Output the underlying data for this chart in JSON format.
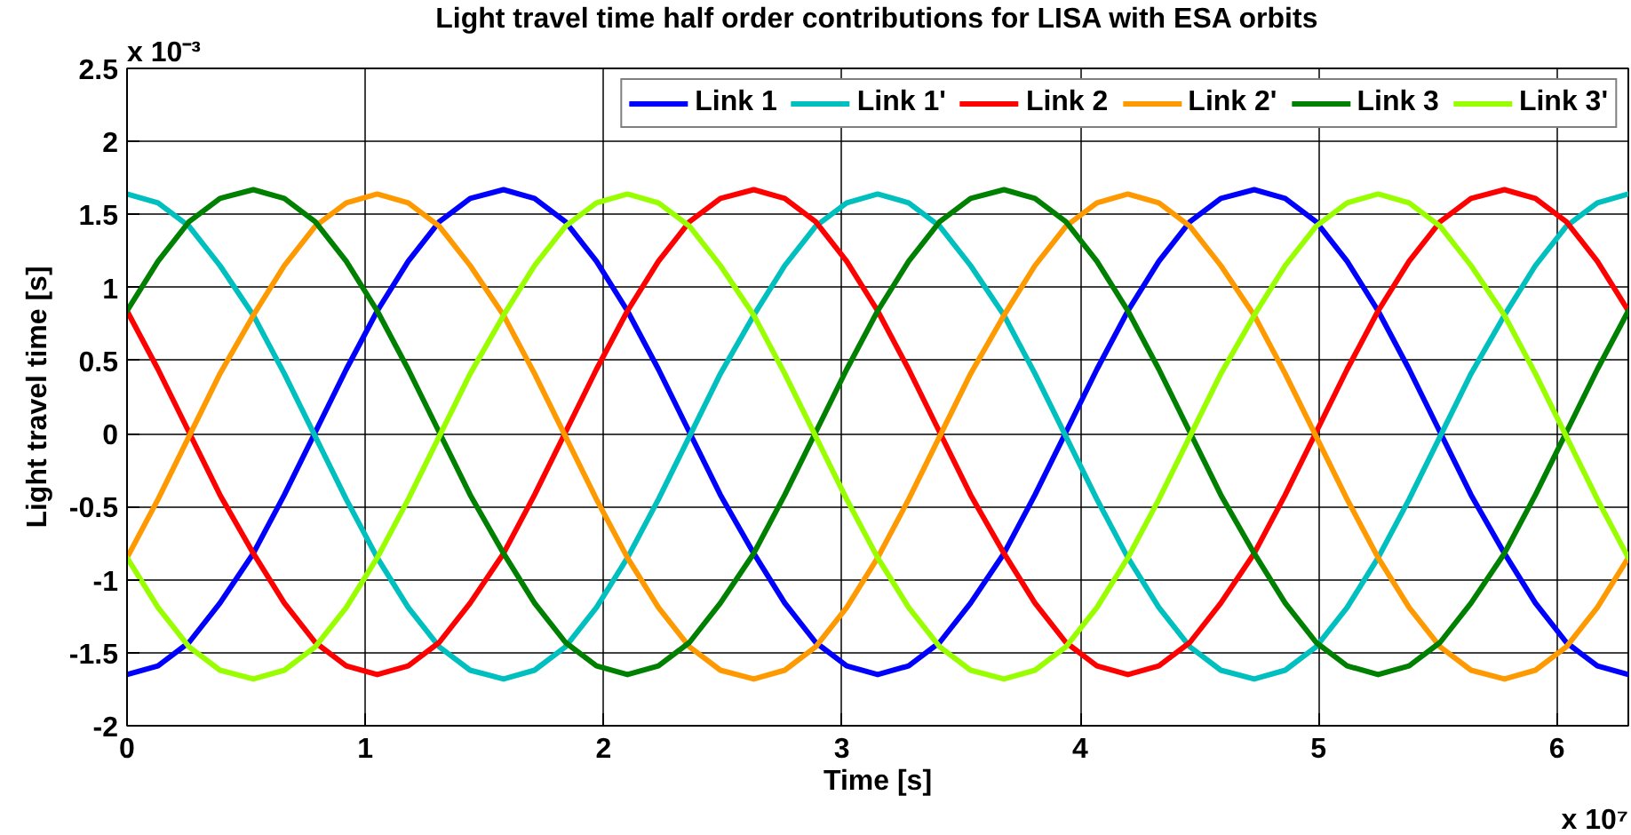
{
  "chart_data": {
    "type": "line",
    "title": "Light travel time half order contributions for LISA with ESA orbits",
    "xlabel": "Time [s]",
    "ylabel": "Light travel time [s]",
    "annotations": [
      "x 10⁻³",
      "x 10⁷"
    ],
    "xlim": [
      0,
      6.3
    ],
    "ylim": [
      -2,
      2.5
    ],
    "xticks": [
      0,
      1,
      2,
      3,
      4,
      5,
      6
    ],
    "yticks": [
      -2,
      -1.5,
      -1,
      -0.5,
      0,
      0.5,
      1,
      1.5,
      2,
      2.5
    ],
    "grid": true,
    "legend": "top right",
    "x": [
      0,
      0.13,
      0.26,
      0.39,
      0.53,
      0.66,
      0.79,
      0.92,
      1.05,
      1.18,
      1.31,
      1.44,
      1.58,
      1.71,
      1.84,
      1.97,
      2.1,
      2.23,
      2.36,
      2.49,
      2.63,
      2.76,
      2.89,
      3.02,
      3.15,
      3.28,
      3.41,
      3.54,
      3.68,
      3.81,
      3.94,
      4.07,
      4.2,
      4.33,
      4.46,
      4.59,
      4.73,
      4.86,
      4.99,
      5.12,
      5.25,
      5.38,
      5.51,
      5.64,
      5.78,
      5.91,
      6.04,
      6.17,
      6.3
    ],
    "series": [
      {
        "name": "Link 1",
        "color": "#0000ff",
        "values": [
          -1.65,
          -1.59,
          -1.43,
          -1.16,
          -0.82,
          -0.42,
          0.01,
          0.44,
          0.84,
          1.18,
          1.45,
          1.61,
          1.67,
          1.61,
          1.45,
          1.18,
          0.84,
          0.44,
          0.01,
          -0.42,
          -0.82,
          -1.16,
          -1.43,
          -1.59,
          -1.65,
          -1.59,
          -1.43,
          -1.16,
          -0.82,
          -0.42,
          0.01,
          0.44,
          0.84,
          1.18,
          1.45,
          1.61,
          1.67,
          1.61,
          1.45,
          1.18,
          0.84,
          0.44,
          0.01,
          -0.42,
          -0.82,
          -1.16,
          -1.43,
          -1.59,
          -1.65
        ]
      },
      {
        "name": "Link 1'",
        "color": "#00bfbf",
        "values": [
          1.64,
          1.58,
          1.42,
          1.15,
          0.81,
          0.41,
          -0.02,
          -0.45,
          -0.85,
          -1.19,
          -1.46,
          -1.62,
          -1.68,
          -1.62,
          -1.46,
          -1.19,
          -0.85,
          -0.45,
          -0.02,
          0.41,
          0.81,
          1.15,
          1.42,
          1.58,
          1.64,
          1.58,
          1.42,
          1.15,
          0.81,
          0.41,
          -0.02,
          -0.45,
          -0.85,
          -1.19,
          -1.46,
          -1.62,
          -1.68,
          -1.62,
          -1.46,
          -1.19,
          -0.85,
          -0.45,
          -0.02,
          0.41,
          0.81,
          1.15,
          1.42,
          1.58,
          1.64
        ]
      },
      {
        "name": "Link 2",
        "color": "#ff0000",
        "values": [
          0.84,
          0.44,
          0.01,
          -0.42,
          -0.82,
          -1.16,
          -1.43,
          -1.59,
          -1.65,
          -1.59,
          -1.43,
          -1.16,
          -0.82,
          -0.42,
          0.01,
          0.44,
          0.84,
          1.18,
          1.45,
          1.61,
          1.67,
          1.61,
          1.45,
          1.18,
          0.84,
          0.44,
          0.01,
          -0.42,
          -0.82,
          -1.16,
          -1.43,
          -1.59,
          -1.65,
          -1.59,
          -1.43,
          -1.16,
          -0.82,
          -0.42,
          0.01,
          0.44,
          0.84,
          1.18,
          1.45,
          1.61,
          1.67,
          1.61,
          1.45,
          1.18,
          0.84
        ]
      },
      {
        "name": "Link 2'",
        "color": "#ff9900",
        "values": [
          -0.85,
          -0.45,
          -0.02,
          0.41,
          0.81,
          1.15,
          1.42,
          1.58,
          1.64,
          1.58,
          1.42,
          1.15,
          0.81,
          0.41,
          -0.02,
          -0.45,
          -0.85,
          -1.19,
          -1.46,
          -1.62,
          -1.68,
          -1.62,
          -1.46,
          -1.19,
          -0.85,
          -0.45,
          -0.02,
          0.41,
          0.81,
          1.15,
          1.42,
          1.58,
          1.64,
          1.58,
          1.42,
          1.15,
          0.81,
          0.41,
          -0.02,
          -0.45,
          -0.85,
          -1.19,
          -1.46,
          -1.62,
          -1.68,
          -1.62,
          -1.46,
          -1.19,
          -0.85
        ]
      },
      {
        "name": "Link 3",
        "color": "#008000",
        "values": [
          0.84,
          1.18,
          1.45,
          1.61,
          1.67,
          1.61,
          1.45,
          1.18,
          0.84,
          0.44,
          0.01,
          -0.42,
          -0.82,
          -1.16,
          -1.43,
          -1.59,
          -1.65,
          -1.59,
          -1.43,
          -1.16,
          -0.82,
          -0.42,
          0.01,
          0.44,
          0.84,
          1.18,
          1.45,
          1.61,
          1.67,
          1.61,
          1.45,
          1.18,
          0.84,
          0.44,
          0.01,
          -0.42,
          -0.82,
          -1.16,
          -1.43,
          -1.59,
          -1.65,
          -1.59,
          -1.43,
          -1.16,
          -0.82,
          -0.42,
          0.01,
          0.44,
          0.84
        ]
      },
      {
        "name": "Link 3'",
        "color": "#99ff00",
        "values": [
          -0.85,
          -1.19,
          -1.46,
          -1.62,
          -1.68,
          -1.62,
          -1.46,
          -1.19,
          -0.85,
          -0.45,
          -0.02,
          0.41,
          0.81,
          1.15,
          1.42,
          1.58,
          1.64,
          1.58,
          1.42,
          1.15,
          0.81,
          0.41,
          -0.02,
          -0.45,
          -0.85,
          -1.19,
          -1.46,
          -1.62,
          -1.68,
          -1.62,
          -1.46,
          -1.19,
          -0.85,
          -0.45,
          -0.02,
          0.41,
          0.81,
          1.15,
          1.42,
          1.58,
          1.64,
          1.58,
          1.42,
          1.15,
          0.81,
          0.41,
          -0.02,
          -0.45,
          -0.85
        ]
      }
    ]
  }
}
